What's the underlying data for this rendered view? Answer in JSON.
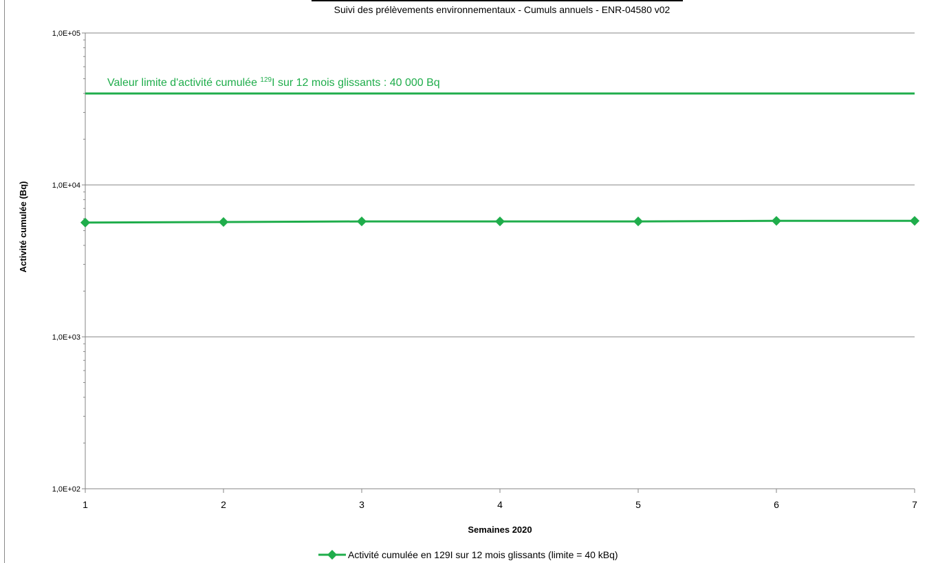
{
  "subtitle": "Suivi des prélèvements environnementaux - Cumuls annuels - ENR-04580 v02",
  "chart_data": {
    "type": "line",
    "xlabel": "Semaines 2020",
    "ylabel": "Activité cumulée (Bq)",
    "yscale": "log",
    "ylim": [
      100,
      100000
    ],
    "xlim": [
      1,
      7
    ],
    "x": [
      1,
      2,
      3,
      4,
      5,
      6,
      7
    ],
    "x_tick_labels": [
      "1",
      "2",
      "3",
      "4",
      "5",
      "6",
      "7"
    ],
    "y_ticks": [
      100,
      1000,
      10000,
      100000
    ],
    "y_tick_labels": [
      "1,0E+02",
      "1,0E+03",
      "1,0E+04",
      "1,0E+05"
    ],
    "grid": true,
    "series": [
      {
        "name": "Activité cumulée en 129I sur 12 mois glissants (limite = 40 kBq)",
        "color": "#1fad4b",
        "marker": "diamond",
        "values": [
          5650,
          5700,
          5750,
          5750,
          5750,
          5800,
          5800
        ]
      }
    ],
    "reference_line": {
      "value": 40000,
      "color": "#1fad4b",
      "label_prefix": "Valeur limite d'activité cumulée ",
      "label_superscript": "129",
      "label_suffix": "I sur 12 mois  glissants : 40 000 Bq"
    },
    "legend_position": "bottom"
  }
}
